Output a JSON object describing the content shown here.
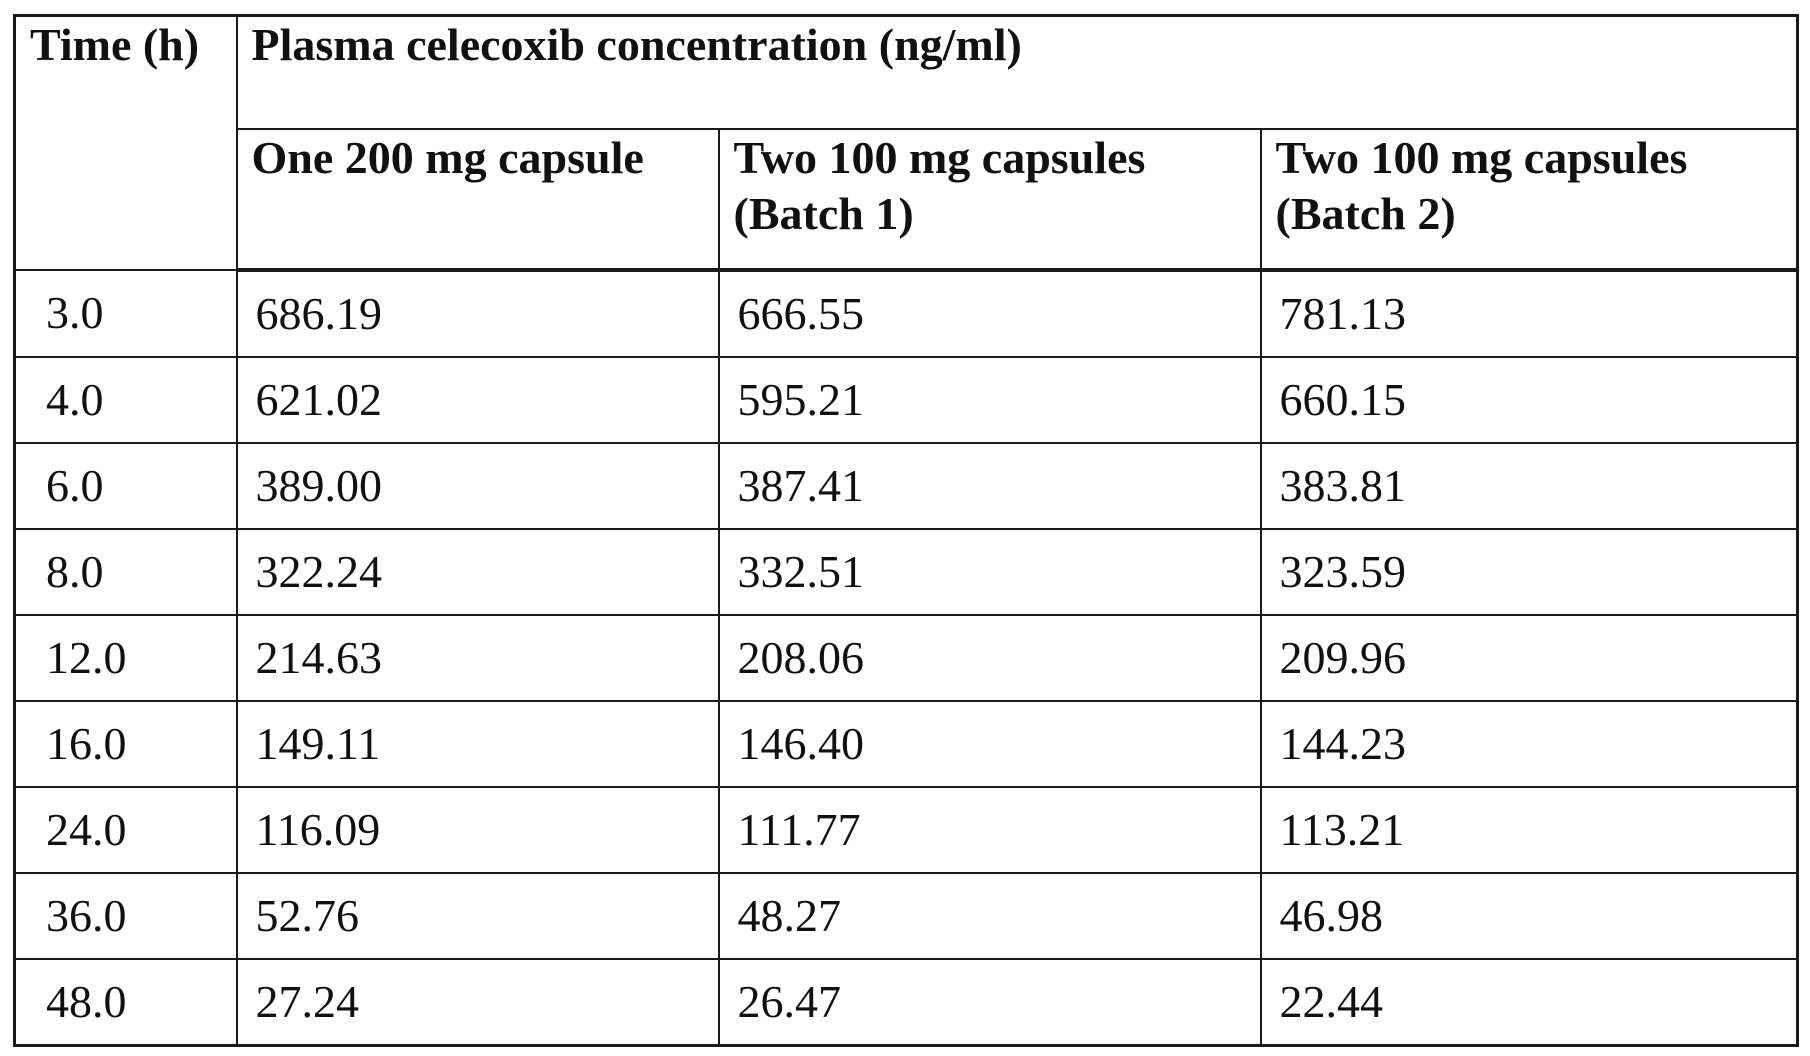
{
  "table": {
    "time_header": "Time (h)",
    "group_header": "Plasma celecoxib concentration (ng/ml)",
    "sub_headers": [
      "One 200 mg capsule",
      "Two 100 mg capsules (Batch 1)",
      "Two 100 mg capsules (Batch 2)"
    ],
    "rows": [
      [
        "3.0",
        "686.19",
        "666.55",
        "781.13"
      ],
      [
        "4.0",
        "621.02",
        "595.21",
        "660.15"
      ],
      [
        "6.0",
        "389.00",
        "387.41",
        "383.81"
      ],
      [
        "8.0",
        "322.24",
        "332.51",
        "323.59"
      ],
      [
        "12.0",
        "214.63",
        "208.06",
        "209.96"
      ],
      [
        "16.0",
        "149.11",
        "146.40",
        "144.23"
      ],
      [
        "24.0",
        "116.09",
        "111.77",
        "113.21"
      ],
      [
        "36.0",
        "52.76",
        "48.27",
        "46.98"
      ],
      [
        "48.0",
        "27.24",
        "26.47",
        "22.44"
      ]
    ]
  }
}
